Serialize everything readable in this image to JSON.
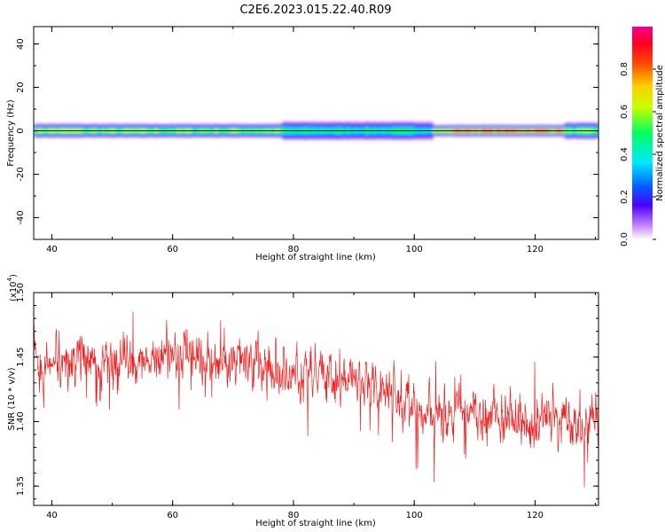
{
  "title": "C2E6.2023.015.22.40.R09",
  "colors": {
    "snr_line": "#ee2222",
    "axis": "#000000",
    "background": "#ffffff"
  },
  "chart_data": [
    {
      "type": "heatmap",
      "xlabel": "Height of straight line (km)",
      "ylabel": "Frequency (Hz)",
      "xlim": [
        37,
        130.5
      ],
      "ylim": [
        -50,
        48
      ],
      "xticks": [
        "40",
        "60",
        "80",
        "100",
        "120"
      ],
      "xtick_values": [
        40,
        60,
        80,
        100,
        120
      ],
      "yticks": [
        "40",
        "20",
        "0",
        "-20",
        "-40"
      ],
      "ytick_values": [
        40,
        20,
        0,
        -20,
        -40
      ],
      "grid": false,
      "colorbar": {
        "label": "Normalized spectral amplitude",
        "range": [
          0,
          1
        ],
        "ticks": [
          "0.0",
          "0.2",
          "0.4",
          "0.6",
          "0.8"
        ],
        "tick_values": [
          0,
          0.2,
          0.4,
          0.6,
          0.8
        ],
        "colormap": "rainbow (white-violet-blue-cyan-green-yellow-orange-red-magenta)"
      },
      "band": {
        "center_frequency_hz": 0,
        "segments": [
          {
            "x_range": [
              37,
              45
            ],
            "half_width_hz": 2.5,
            "core_amplitude": 0.65
          },
          {
            "x_range": [
              45,
              78
            ],
            "half_width_hz": 2.5,
            "core_amplitude": 0.6
          },
          {
            "x_range": [
              78,
              103
            ],
            "half_width_hz": 3.5,
            "core_amplitude": 0.45
          },
          {
            "x_range": [
              103,
              106
            ],
            "half_width_hz": 2.0,
            "core_amplitude": 0.7
          },
          {
            "x_range": [
              106,
              125
            ],
            "half_width_hz": 2.0,
            "core_amplitude": 0.9
          },
          {
            "x_range": [
              125,
              130.5
            ],
            "half_width_hz": 3.0,
            "core_amplitude": 0.55
          }
        ]
      }
    },
    {
      "type": "line",
      "xlabel": "Height of straight line (km)",
      "ylabel": "SNR (10 * v/v)",
      "y_multiplier": "(x10",
      "y_multiplier_exp": "4",
      "y_multiplier_close": ")",
      "xlim": [
        37,
        130.5
      ],
      "ylim": [
        1.335,
        1.5
      ],
      "xticks": [
        "40",
        "60",
        "80",
        "100",
        "120"
      ],
      "xtick_values": [
        40,
        60,
        80,
        100,
        120
      ],
      "yticks": [
        "1.50",
        "1.45",
        "1.40",
        "1.35"
      ],
      "ytick_values": [
        1.5,
        1.45,
        1.4,
        1.35
      ],
      "grid": false,
      "series": [
        {
          "color": "#ee2222",
          "trend": {
            "x": [
              37,
              50,
              60,
              70,
              80,
              90,
              95,
              100,
              105,
              110,
              120,
              130.5
            ],
            "y": [
              1.445,
              1.447,
              1.448,
              1.446,
              1.438,
              1.433,
              1.428,
              1.412,
              1.405,
              1.405,
              1.402,
              1.398
            ]
          },
          "noise_amplitude": 0.012,
          "n_points": 1400
        }
      ]
    }
  ]
}
